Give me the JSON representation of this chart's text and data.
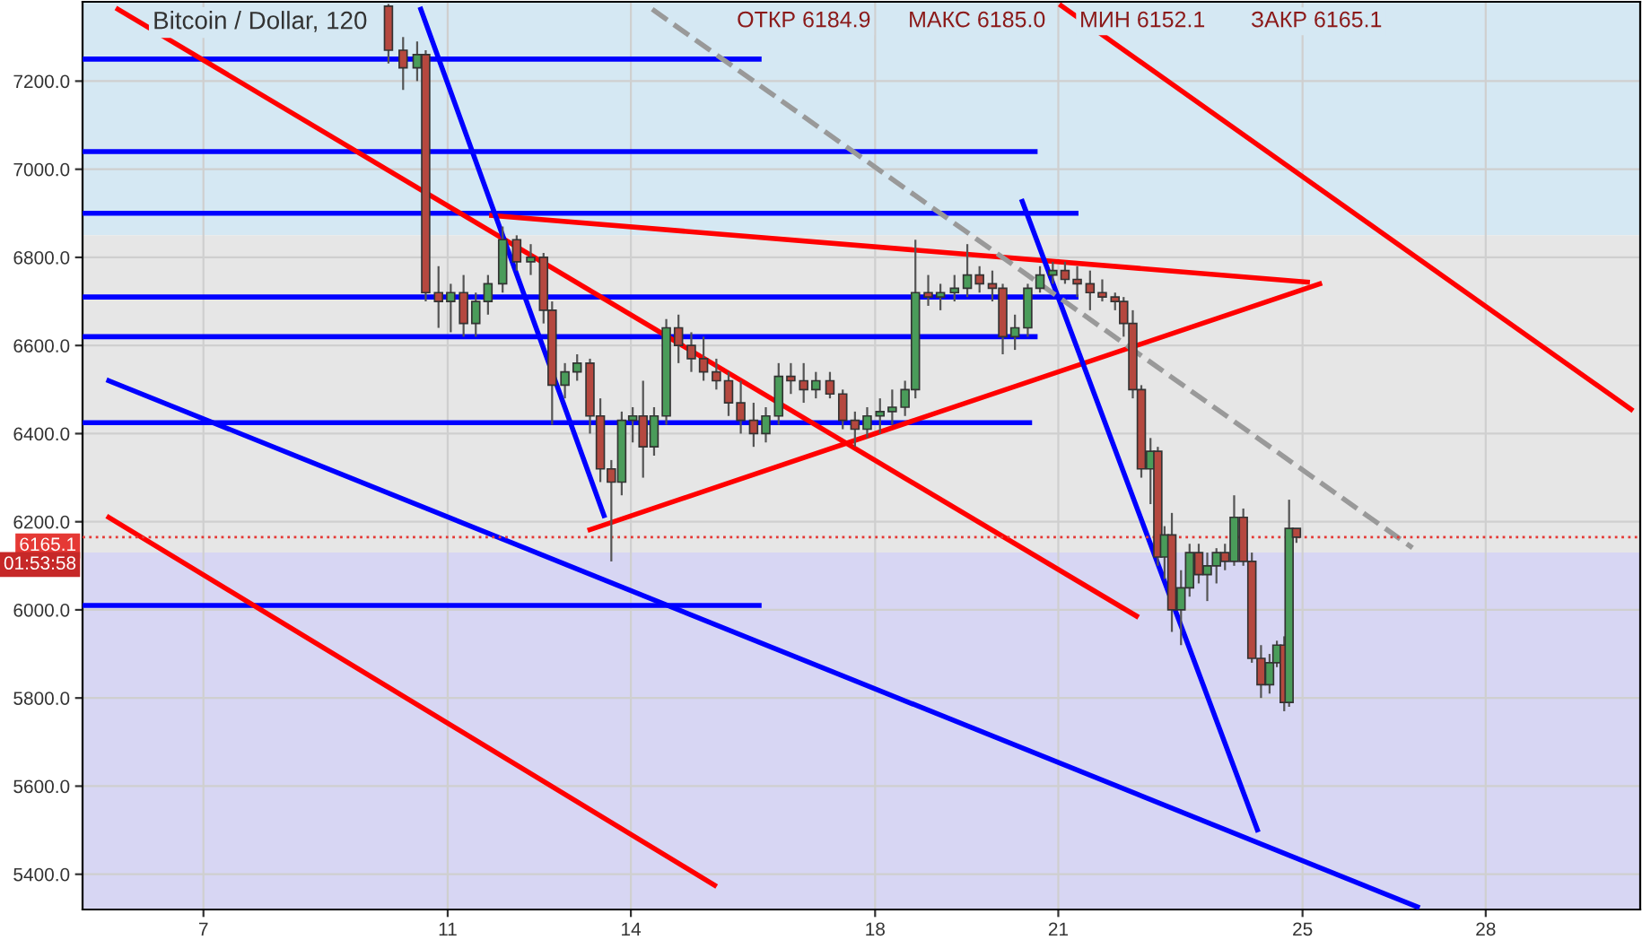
{
  "chart_data": {
    "type": "candlestick",
    "title": "Bitcoin / Dollar, 120",
    "annotations": [
      "ОТКР 6184.9",
      "МАКС 6185.0",
      "МИН 6152.1",
      "ЗАКР 6165.1",
      "01:53:58"
    ],
    "x": [
      10.03,
      10.27,
      10.5,
      10.64,
      10.85,
      11.05,
      11.26,
      11.46,
      11.66,
      11.9,
      12.13,
      12.36,
      12.57,
      12.71,
      12.92,
      13.12,
      13.33,
      13.5,
      13.68,
      13.85,
      14.03,
      14.2,
      14.38,
      14.58,
      14.78,
      14.99,
      15.19,
      15.4,
      15.6,
      15.8,
      16.01,
      16.21,
      16.42,
      16.62,
      16.83,
      17.03,
      17.26,
      17.47,
      17.67,
      17.87,
      18.08,
      18.28,
      18.49,
      18.66,
      18.87,
      19.07,
      19.3,
      19.51,
      19.71,
      19.92,
      20.09,
      20.29,
      20.5,
      20.7,
      20.91,
      21.11,
      21.31,
      21.52,
      21.72,
      21.93,
      22.07,
      22.22,
      22.36,
      22.51,
      22.63,
      22.74,
      22.86,
      23.01,
      23.15,
      23.3,
      23.44,
      23.59,
      23.73,
      23.88,
      24.03,
      24.17,
      24.32,
      24.46,
      24.58,
      24.7,
      24.78,
      24.9
    ],
    "ohlc": [
      [
        7370,
        7375,
        7240,
        7270
      ],
      [
        7270,
        7300,
        7180,
        7230
      ],
      [
        7230,
        7290,
        7200,
        7260
      ],
      [
        7260,
        7270,
        6700,
        6720
      ],
      [
        6720,
        6780,
        6640,
        6700
      ],
      [
        6700,
        6740,
        6630,
        6720
      ],
      [
        6720,
        6760,
        6620,
        6650
      ],
      [
        6650,
        6720,
        6620,
        6700
      ],
      [
        6700,
        6760,
        6670,
        6740
      ],
      [
        6740,
        6870,
        6720,
        6840
      ],
      [
        6840,
        6850,
        6770,
        6790
      ],
      [
        6790,
        6830,
        6760,
        6800
      ],
      [
        6800,
        6810,
        6650,
        6680
      ],
      [
        6680,
        6700,
        6420,
        6510
      ],
      [
        6510,
        6560,
        6480,
        6540
      ],
      [
        6540,
        6580,
        6520,
        6560
      ],
      [
        6560,
        6570,
        6400,
        6440
      ],
      [
        6440,
        6480,
        6290,
        6320
      ],
      [
        6320,
        6340,
        6110,
        6290
      ],
      [
        6290,
        6450,
        6260,
        6430
      ],
      [
        6430,
        6460,
        6380,
        6440
      ],
      [
        6440,
        6520,
        6300,
        6370
      ],
      [
        6370,
        6460,
        6350,
        6440
      ],
      [
        6440,
        6660,
        6420,
        6640
      ],
      [
        6640,
        6670,
        6560,
        6600
      ],
      [
        6600,
        6630,
        6540,
        6570
      ],
      [
        6570,
        6620,
        6520,
        6540
      ],
      [
        6540,
        6570,
        6500,
        6520
      ],
      [
        6520,
        6540,
        6440,
        6470
      ],
      [
        6470,
        6520,
        6400,
        6430
      ],
      [
        6430,
        6470,
        6370,
        6400
      ],
      [
        6400,
        6460,
        6380,
        6440
      ],
      [
        6440,
        6560,
        6420,
        6530
      ],
      [
        6530,
        6560,
        6490,
        6520
      ],
      [
        6520,
        6560,
        6470,
        6500
      ],
      [
        6500,
        6540,
        6480,
        6520
      ],
      [
        6520,
        6540,
        6480,
        6490
      ],
      [
        6490,
        6500,
        6410,
        6430
      ],
      [
        6430,
        6450,
        6370,
        6410
      ],
      [
        6410,
        6460,
        6390,
        6440
      ],
      [
        6440,
        6480,
        6400,
        6450
      ],
      [
        6450,
        6500,
        6420,
        6460
      ],
      [
        6460,
        6520,
        6440,
        6500
      ],
      [
        6500,
        6840,
        6480,
        6720
      ],
      [
        6720,
        6760,
        6690,
        6710
      ],
      [
        6710,
        6740,
        6680,
        6720
      ],
      [
        6720,
        6760,
        6700,
        6730
      ],
      [
        6730,
        6830,
        6710,
        6760
      ],
      [
        6760,
        6780,
        6720,
        6740
      ],
      [
        6740,
        6770,
        6700,
        6730
      ],
      [
        6730,
        6740,
        6580,
        6620
      ],
      [
        6620,
        6670,
        6590,
        6640
      ],
      [
        6640,
        6740,
        6620,
        6730
      ],
      [
        6730,
        6780,
        6720,
        6760
      ],
      [
        6760,
        6790,
        6740,
        6770
      ],
      [
        6770,
        6790,
        6740,
        6750
      ],
      [
        6750,
        6780,
        6710,
        6740
      ],
      [
        6740,
        6770,
        6680,
        6720
      ],
      [
        6720,
        6750,
        6700,
        6710
      ],
      [
        6710,
        6720,
        6680,
        6700
      ],
      [
        6700,
        6710,
        6620,
        6650
      ],
      [
        6650,
        6680,
        6480,
        6500
      ],
      [
        6500,
        6510,
        6300,
        6320
      ],
      [
        6320,
        6390,
        6240,
        6360
      ],
      [
        6360,
        6370,
        6100,
        6120
      ],
      [
        6120,
        6190,
        6070,
        6170
      ],
      [
        6170,
        6220,
        5950,
        6000
      ],
      [
        6000,
        6090,
        5920,
        6050
      ],
      [
        6050,
        6150,
        6030,
        6130
      ],
      [
        6130,
        6150,
        6060,
        6080
      ],
      [
        6080,
        6130,
        6020,
        6100
      ],
      [
        6100,
        6140,
        6060,
        6130
      ],
      [
        6130,
        6150,
        6090,
        6110
      ],
      [
        6110,
        6260,
        6100,
        6210
      ],
      [
        6210,
        6230,
        6100,
        6110
      ],
      [
        6110,
        6130,
        5880,
        5890
      ],
      [
        5890,
        5920,
        5800,
        5830
      ],
      [
        5830,
        5900,
        5810,
        5880
      ],
      [
        5880,
        5930,
        5870,
        5920
      ],
      [
        5920,
        5940,
        5770,
        5790
      ],
      [
        5790,
        6250,
        5780,
        6184.9
      ],
      [
        6184.9,
        6185.0,
        6152.1,
        6165.1
      ]
    ],
    "colors": [
      "#b5483f",
      "#b5483f",
      "#4a9c5a",
      "#b5483f",
      "#b5483f",
      "#4a9c5a",
      "#b5483f",
      "#4a9c5a",
      "#4a9c5a",
      "#4a9c5a",
      "#b5483f",
      "#4a9c5a",
      "#b5483f",
      "#b5483f",
      "#4a9c5a",
      "#4a9c5a",
      "#b5483f",
      "#b5483f",
      "#b5483f",
      "#4a9c5a",
      "#4a9c5a",
      "#b5483f",
      "#4a9c5a",
      "#4a9c5a",
      "#b5483f",
      "#b5483f",
      "#b5483f",
      "#b5483f",
      "#b5483f",
      "#b5483f",
      "#b5483f",
      "#4a9c5a",
      "#4a9c5a",
      "#b5483f",
      "#b5483f",
      "#4a9c5a",
      "#b5483f",
      "#b5483f",
      "#b5483f",
      "#4a9c5a",
      "#4a9c5a",
      "#4a9c5a",
      "#4a9c5a",
      "#4a9c5a",
      "#b5483f",
      "#4a9c5a",
      "#4a9c5a",
      "#4a9c5a",
      "#b5483f",
      "#b5483f",
      "#b5483f",
      "#4a9c5a",
      "#4a9c5a",
      "#4a9c5a",
      "#4a9c5a",
      "#b5483f",
      "#b5483f",
      "#b5483f",
      "#b5483f",
      "#b5483f",
      "#b5483f",
      "#b5483f",
      "#b5483f",
      "#4a9c5a",
      "#b5483f",
      "#4a9c5a",
      "#b5483f",
      "#4a9c5a",
      "#4a9c5a",
      "#b5483f",
      "#4a9c5a",
      "#4a9c5a",
      "#b5483f",
      "#4a9c5a",
      "#b5483f",
      "#b5483f",
      "#b5483f",
      "#4a9c5a",
      "#4a9c5a",
      "#b5483f",
      "#4a9c5a",
      "#b5483f"
    ],
    "series": [
      {
        "type": "line",
        "color": "#0000ff",
        "x": [
          5.02,
          16.1
        ],
        "values": [
          7250,
          7250
        ]
      },
      {
        "type": "line",
        "color": "#0000ff",
        "x": [
          5.02,
          20.62
        ],
        "values": [
          7040,
          7040
        ]
      },
      {
        "type": "line",
        "color": "#0000ff",
        "x": [
          5.02,
          21.29
        ],
        "values": [
          6900,
          6900
        ]
      },
      {
        "type": "line",
        "color": "#0000ff",
        "x": [
          5.02,
          21.29
        ],
        "values": [
          6710,
          6710
        ]
      },
      {
        "type": "line",
        "color": "#0000ff",
        "x": [
          5.02,
          20.62
        ],
        "values": [
          6620,
          6620
        ]
      },
      {
        "type": "line",
        "color": "#0000ff",
        "x": [
          5.02,
          20.53
        ],
        "values": [
          6425,
          6425
        ]
      },
      {
        "type": "line",
        "color": "#0000ff",
        "x": [
          5.02,
          16.1
        ],
        "values": [
          6010,
          6010
        ]
      },
      {
        "type": "line",
        "color": "#ff0000",
        "x": [
          5.6,
          22.28
        ],
        "values": [
          7363,
          5986
        ]
      },
      {
        "type": "line",
        "color": "#ff0000",
        "x": [
          5.45,
          15.37
        ],
        "values": [
          6210,
          5375
        ]
      },
      {
        "type": "line",
        "color": "#ff0000",
        "x": [
          21.05,
          30.38
        ],
        "values": [
          7371,
          6455
        ]
      },
      {
        "type": "line",
        "color": "#0000ff",
        "x": [
          5.45,
          26.88
        ],
        "values": [
          6520,
          5326
        ]
      },
      {
        "type": "line",
        "color": "#ff0000",
        "x": [
          11.72,
          25.08
        ],
        "values": [
          6895,
          6744
        ]
      },
      {
        "type": "line",
        "color": "#ff0000",
        "x": [
          13.33,
          25.28
        ],
        "values": [
          6182,
          6740
        ]
      },
      {
        "type": "line",
        "color": "#0000ff",
        "x": [
          10.56,
          13.56
        ],
        "values": [
          7363,
          6214
        ]
      },
      {
        "type": "line",
        "color": "#0000ff",
        "x": [
          20.41,
          24.26
        ],
        "values": [
          6927,
          5501
        ]
      },
      {
        "type": "line",
        "color": "#999999",
        "line_style": "dashed",
        "x": [
          14.35,
          26.8
        ],
        "values": [
          7363,
          6141
        ]
      }
    ],
    "bands": [
      {
        "axis": "y",
        "from": 6850,
        "to": 7380,
        "color": "#d5e8f3"
      },
      {
        "axis": "y",
        "from": 6130,
        "to": 6850,
        "color": "#e6e6e6"
      },
      {
        "axis": "y",
        "from": 5320,
        "to": 6130,
        "color": "#d7d6f3"
      }
    ],
    "ref_lines": [
      {
        "axis": "y",
        "value": 6165.1,
        "label": "6165.1",
        "color": "#e53935",
        "line_style": "dotted"
      }
    ],
    "xlim": [
      5.02,
      30.53
    ],
    "xticks": [
      7,
      11,
      14,
      18,
      21,
      25,
      28
    ],
    "ylim": [
      5320,
      7380
    ],
    "yticks": [
      {
        "value": 5400,
        "label": "5400.0"
      },
      {
        "value": 5600,
        "label": "5600.0"
      },
      {
        "value": 5800,
        "label": "5800.0"
      },
      {
        "value": 6000,
        "label": "6000.0"
      },
      {
        "value": 6200,
        "label": "6200.0"
      },
      {
        "value": 6400,
        "label": "6400.0"
      },
      {
        "value": 6600,
        "label": "6600.0"
      },
      {
        "value": 6800,
        "label": "6800.0"
      },
      {
        "value": 7000,
        "label": "7000.0"
      },
      {
        "value": 7200,
        "label": "7200.0"
      }
    ],
    "grid": true
  }
}
